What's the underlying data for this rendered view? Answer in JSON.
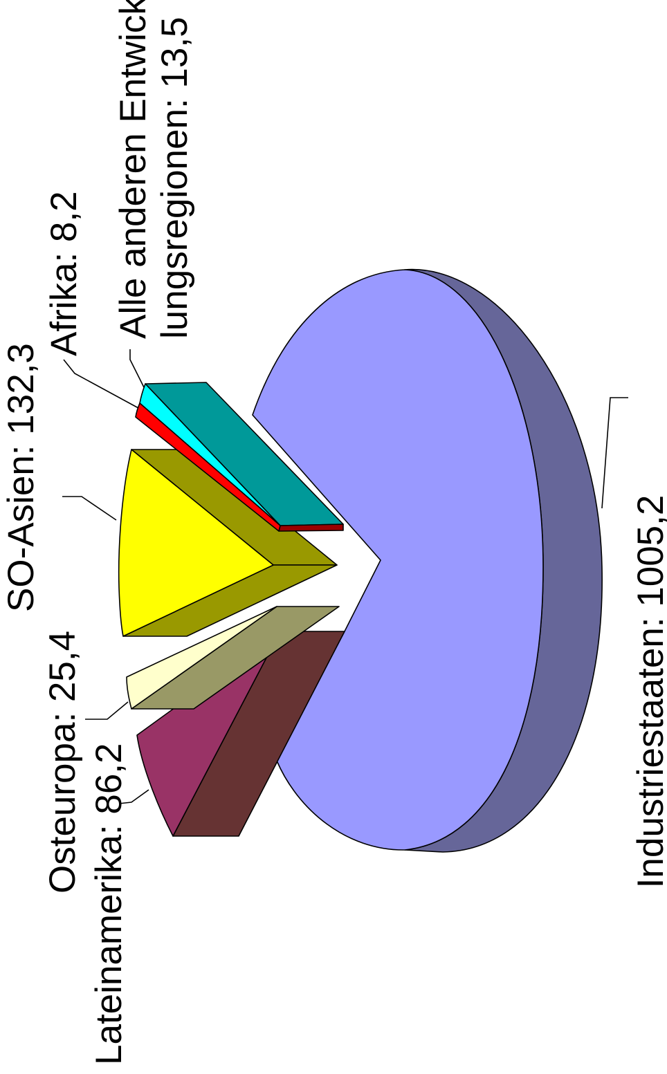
{
  "chart_data": {
    "type": "pie",
    "style": "3d-exploded",
    "orientation": "rotated-90-ccw",
    "slices": [
      {
        "label": "Industriestaaten",
        "value": 1005.2,
        "text": "Industriestaaten: 1005,2",
        "color": "#9999ff",
        "side_color": "#666699"
      },
      {
        "label": "Lateinamerika",
        "value": 86.2,
        "text": "Lateinamerika: 86,2",
        "color": "#993366",
        "side_color": "#663333"
      },
      {
        "label": "Osteuropa",
        "value": 25.4,
        "text": "Osteuropa: 25,4",
        "color": "#ffffcc",
        "side_color": "#999966"
      },
      {
        "label": "SO-Asien",
        "value": 132.3,
        "text": "SO-Asien: 132,3",
        "color": "#ffff00",
        "side_color": "#999900"
      },
      {
        "label": "Afrika",
        "value": 8.2,
        "text": "Afrika: 8,2",
        "color": "#ff0000",
        "side_color": "#990000"
      },
      {
        "label": "Alle anderen Entwicklungsregionen",
        "value": 13.5,
        "text_lines": [
          "Alle anderen Entwick-",
          "lungsregionen: 13,5"
        ],
        "color": "#00ffff",
        "side_color": "#009999"
      }
    ],
    "legend": "none"
  }
}
